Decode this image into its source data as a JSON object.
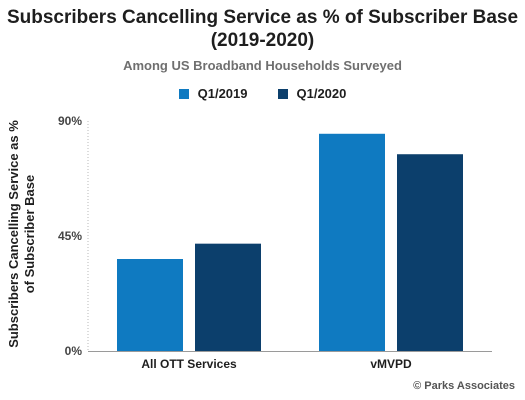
{
  "chart_data": {
    "type": "bar",
    "title_line1": "Subscribers Cancelling Service as % of Subscriber Base",
    "title_line2": "(2019-2020)",
    "subtitle": "Among US Broadband Households Surveyed",
    "ylabel_line1": "Subscribers Cancelling Service as %",
    "ylabel_line2": "of Subscriber Base",
    "xlabel": "",
    "categories": [
      "All OTT Services",
      "vMVPD"
    ],
    "series": [
      {
        "name": "Q1/2019",
        "color": "#0f7ac1",
        "values": [
          36,
          85
        ]
      },
      {
        "name": "Q1/2020",
        "color": "#0c3f6c",
        "values": [
          42,
          77
        ]
      }
    ],
    "ylim": [
      0,
      90
    ],
    "yticks": [
      0,
      45,
      90
    ],
    "ytick_labels": [
      "0%",
      "45%",
      "90%"
    ],
    "grid": false,
    "legend_position": "top-center",
    "credit": "© Parks Associates"
  }
}
